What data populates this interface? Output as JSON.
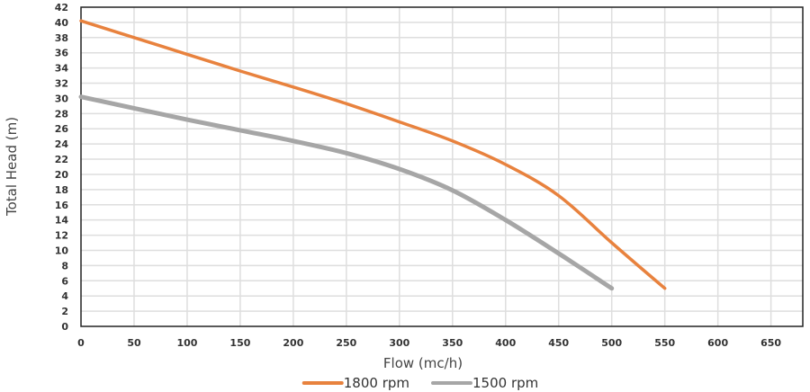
{
  "chart_data": {
    "type": "line",
    "title": "",
    "xlabel": "Flow (mc/h)",
    "ylabel": "Total Head (m)",
    "xlim": [
      0,
      680
    ],
    "ylim": [
      0,
      42
    ],
    "x_ticks": [
      0,
      50,
      100,
      150,
      200,
      250,
      300,
      350,
      400,
      450,
      500,
      550,
      600,
      650
    ],
    "y_ticks": [
      0,
      2,
      4,
      6,
      8,
      10,
      12,
      14,
      16,
      18,
      20,
      22,
      24,
      26,
      28,
      30,
      32,
      34,
      36,
      38,
      40,
      42
    ],
    "grid": true,
    "legend_position": "bottom",
    "series": [
      {
        "name": "1800 rpm",
        "color": "#e8823e",
        "points": [
          [
            0,
            40.2
          ],
          [
            50,
            38
          ],
          [
            100,
            35.8
          ],
          [
            150,
            33.6
          ],
          [
            200,
            31.5
          ],
          [
            250,
            29.3
          ],
          [
            300,
            26.9
          ],
          [
            350,
            24.4
          ],
          [
            400,
            21.3
          ],
          [
            450,
            17.2
          ],
          [
            500,
            11
          ],
          [
            550,
            5
          ]
        ]
      },
      {
        "name": "1500 rpm",
        "color": "#a6a6a6",
        "points": [
          [
            0,
            30.2
          ],
          [
            50,
            28.7
          ],
          [
            100,
            27.2
          ],
          [
            150,
            25.8
          ],
          [
            200,
            24.4
          ],
          [
            250,
            22.8
          ],
          [
            300,
            20.7
          ],
          [
            350,
            17.9
          ],
          [
            400,
            14
          ],
          [
            450,
            9.6
          ],
          [
            500,
            5
          ]
        ]
      }
    ]
  }
}
